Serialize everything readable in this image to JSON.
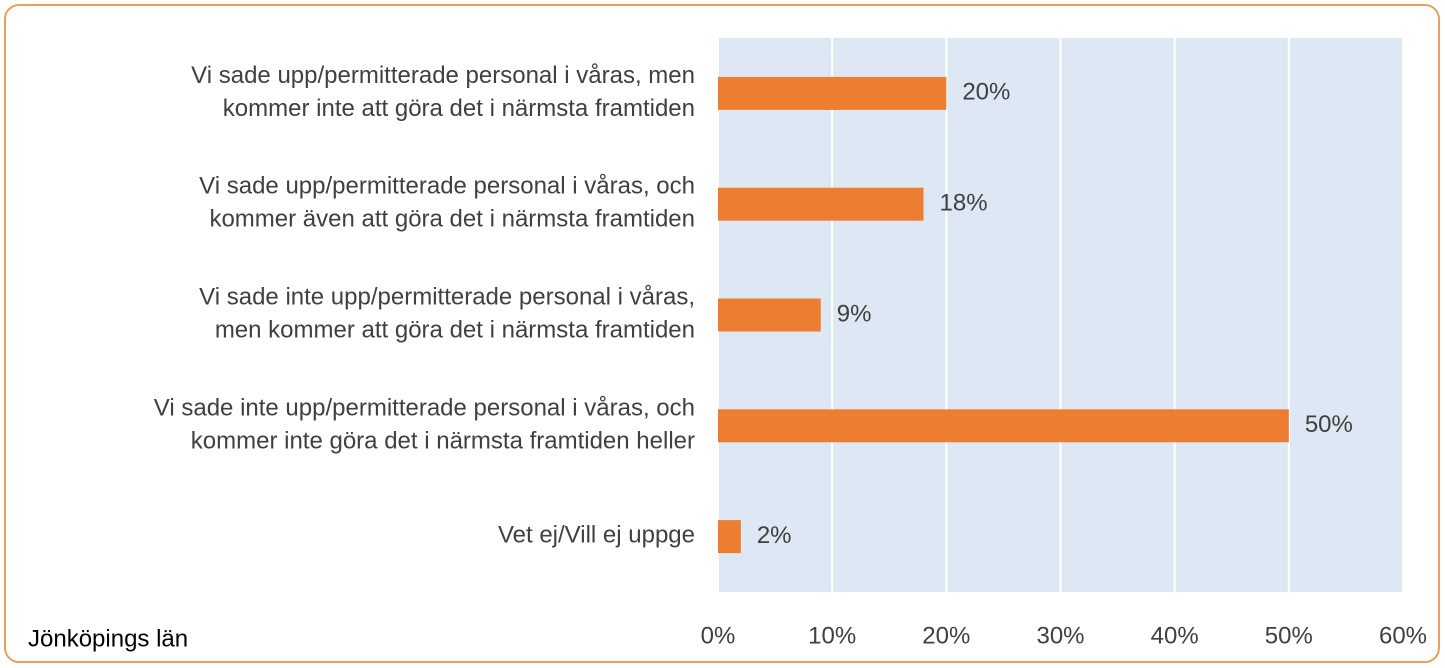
{
  "chart_data": {
    "type": "bar",
    "orientation": "horizontal",
    "categories": [
      "Vi sade upp/permitterade personal i våras, men\nkommer inte att göra det i närmsta framtiden",
      "Vi sade upp/permitterade personal i våras, och\nkommer även att göra det i närmsta framtiden",
      "Vi sade inte upp/permitterade personal i våras,\nmen kommer att göra det i närmsta framtiden",
      "Vi sade inte upp/permitterade personal i våras, och\nkommer inte göra det i närmsta framtiden heller",
      "Vet ej/Vill ej uppge"
    ],
    "values": [
      20,
      18,
      9,
      50,
      2
    ],
    "value_labels": [
      "20%",
      "18%",
      "9%",
      "50%",
      "2%"
    ],
    "color": "#ed7d31",
    "xlim": [
      0,
      60
    ],
    "xticks": [
      {
        "value": 0,
        "label": "0%"
      },
      {
        "value": 10,
        "label": "10%"
      },
      {
        "value": 20,
        "label": "20%"
      },
      {
        "value": 30,
        "label": "30%"
      },
      {
        "value": 40,
        "label": "40%"
      },
      {
        "value": 50,
        "label": "50%"
      },
      {
        "value": 60,
        "label": "60%"
      }
    ],
    "grid": true,
    "footnote": "Jönköpings län"
  }
}
